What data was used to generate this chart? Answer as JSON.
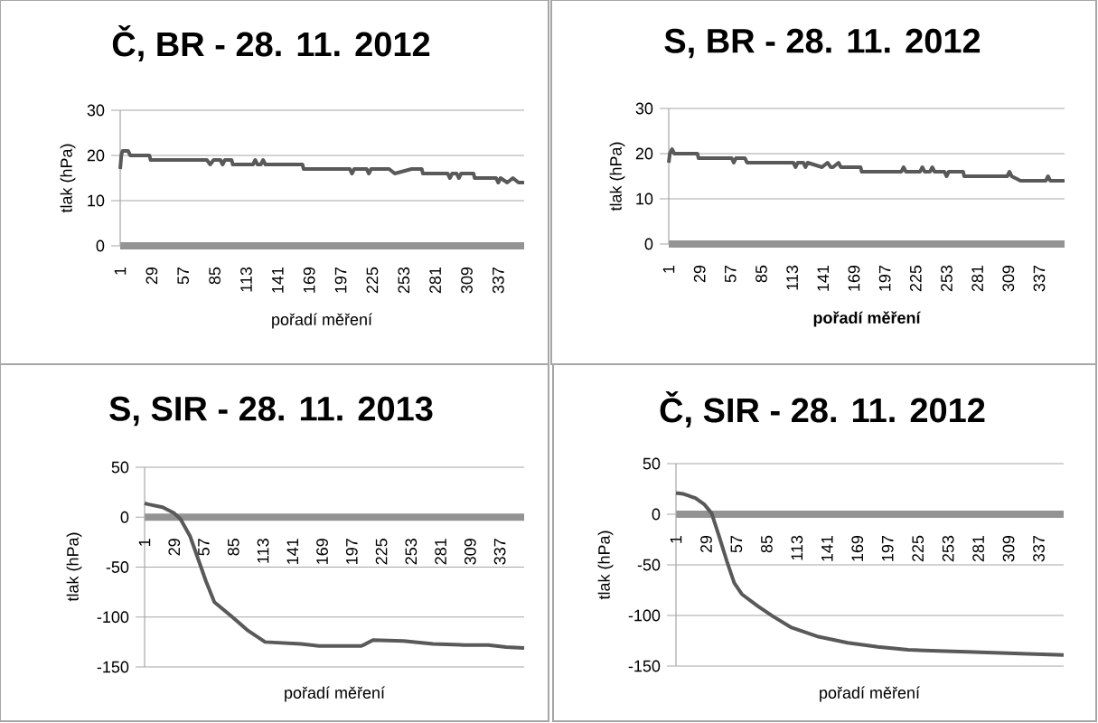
{
  "chart_data": [
    {
      "type": "line",
      "title": "Č, BR - 28. 11. 2012",
      "xlabel": "pořadí měření",
      "ylabel": "tlak (hPa)",
      "xlim": [
        1,
        360
      ],
      "xticks": [
        1,
        29,
        57,
        85,
        113,
        141,
        169,
        197,
        225,
        253,
        281,
        309,
        337
      ],
      "ylim": [
        0,
        30
      ],
      "yticks": [
        0,
        10,
        20,
        30
      ],
      "grid": "y",
      "marker": "none",
      "line_style": "solid",
      "series": [
        {
          "color": "#595959",
          "x": [
            1,
            2,
            3,
            5,
            8,
            10,
            27,
            28,
            30,
            78,
            81,
            84,
            90,
            92,
            94,
            100,
            101,
            119,
            121,
            123,
            126,
            128,
            130,
            163,
            164,
            205,
            207,
            209,
            220,
            222,
            224,
            240,
            245,
            260,
            269,
            270,
            292,
            294,
            296,
            300,
            302,
            304,
            315,
            316,
            335,
            337,
            339,
            345,
            350,
            355,
            360
          ],
          "values": [
            17,
            20,
            21,
            21,
            21,
            20,
            20,
            19,
            19,
            19,
            18,
            19,
            19,
            18,
            19,
            19,
            18,
            18,
            19,
            18,
            18,
            19,
            18,
            18,
            17,
            17,
            16,
            17,
            17,
            16,
            17,
            17,
            16,
            17,
            17,
            16,
            16,
            15,
            16,
            16,
            15,
            16,
            16,
            15,
            15,
            14,
            15,
            14,
            15,
            14,
            14
          ]
        }
      ]
    },
    {
      "type": "line",
      "title": "S, BR - 28. 11. 2012",
      "xlabel": "pořadí měření",
      "ylabel": "tlak (hPa)",
      "xlim": [
        1,
        360
      ],
      "xticks": [
        1,
        29,
        57,
        85,
        113,
        141,
        169,
        197,
        225,
        253,
        281,
        309,
        337
      ],
      "ylim": [
        0,
        30
      ],
      "yticks": [
        0,
        10,
        20,
        30
      ],
      "grid": "y",
      "marker": "none",
      "line_style": "solid",
      "series": [
        {
          "color": "#595959",
          "x": [
            1,
            2,
            4,
            6,
            27,
            28,
            58,
            60,
            62,
            70,
            72,
            95,
            96,
            114,
            116,
            118,
            123,
            125,
            127,
            140,
            145,
            148,
            150,
            155,
            157,
            175,
            176,
            200,
            201,
            212,
            214,
            216,
            229,
            231,
            233,
            238,
            240,
            242,
            251,
            253,
            255,
            268,
            269,
            308,
            310,
            312,
            320,
            322,
            343,
            345,
            347,
            360
          ],
          "values": [
            18,
            20,
            21,
            20,
            20,
            19,
            19,
            18,
            19,
            19,
            18,
            18,
            18,
            18,
            17,
            18,
            18,
            17,
            18,
            17,
            18,
            17,
            17,
            18,
            17,
            17,
            16,
            16,
            16,
            16,
            17,
            16,
            16,
            17,
            16,
            16,
            17,
            16,
            16,
            15,
            16,
            16,
            15,
            15,
            16,
            15,
            14,
            14,
            14,
            15,
            14,
            14
          ]
        }
      ]
    },
    {
      "type": "line",
      "title": "S, SIR - 28. 11. 2013",
      "xlabel": "pořadí měření",
      "ylabel": "tlak (hPa)",
      "xlim": [
        1,
        360
      ],
      "xticks": [
        1,
        29,
        57,
        85,
        113,
        141,
        169,
        197,
        225,
        253,
        281,
        309,
        337
      ],
      "ylim": [
        -150,
        50
      ],
      "yticks": [
        -150,
        -100,
        -50,
        0,
        50
      ],
      "grid": "y",
      "marker": "none",
      "line_style": "solid",
      "series": [
        {
          "color": "#595959",
          "x": [
            1,
            4,
            18,
            29,
            35,
            44,
            52,
            59,
            67,
            84,
            98,
            115,
            132,
            149,
            166,
            206,
            210,
            217,
            246,
            274,
            303,
            326,
            343,
            360
          ],
          "values": [
            14,
            13,
            10,
            4,
            -2,
            -19,
            -43,
            -64,
            -85,
            -100,
            -113,
            -125,
            -126,
            -127,
            -129,
            -129,
            -127,
            -123,
            -124,
            -127,
            -128,
            -128,
            -130,
            -131
          ]
        }
      ]
    },
    {
      "type": "line",
      "title": "Č, SIR - 28. 11. 2012",
      "xlabel": "pořadí měření",
      "ylabel": "tlak (hPa)",
      "xlim": [
        1,
        360
      ],
      "xticks": [
        1,
        29,
        57,
        85,
        113,
        141,
        169,
        197,
        225,
        253,
        281,
        309,
        337
      ],
      "ylim": [
        -150,
        50
      ],
      "yticks": [
        -150,
        -100,
        -50,
        0,
        50
      ],
      "grid": "y",
      "marker": "none",
      "line_style": "solid",
      "series": [
        {
          "color": "#595959",
          "x": [
            1,
            8,
            19,
            27,
            34,
            41,
            48,
            55,
            62,
            77,
            91,
            108,
            133,
            160,
            188,
            216,
            244,
            271,
            299,
            327,
            360
          ],
          "values": [
            21,
            20,
            16,
            10,
            1,
            -22,
            -46,
            -68,
            -79,
            -91,
            -101,
            -112,
            -121,
            -127,
            -131,
            -134,
            -135,
            -136,
            -137,
            -138,
            -139
          ]
        }
      ]
    }
  ]
}
